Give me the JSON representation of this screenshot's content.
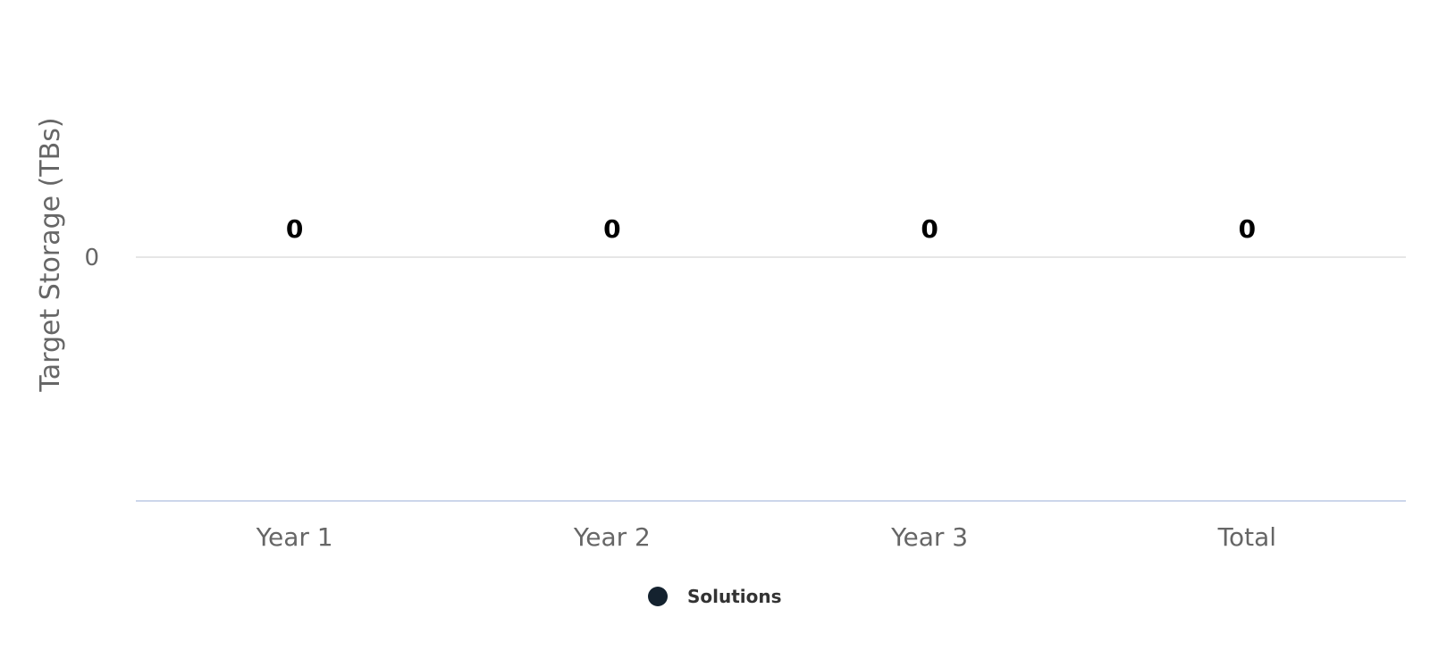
{
  "chart_data": {
    "type": "bar",
    "title": "",
    "xlabel": "",
    "ylabel": "Target Storage (TBs)",
    "categories": [
      "Year 1",
      "Year 2",
      "Year 3",
      "Total"
    ],
    "series": [
      {
        "name": "Solutions",
        "values": [
          0,
          0,
          0,
          0
        ],
        "color": "#14222f"
      }
    ],
    "data_labels": [
      "0",
      "0",
      "0",
      "0"
    ],
    "y_ticks": [
      "0"
    ],
    "grid": true,
    "legend_position": "bottom-center"
  },
  "colors": {
    "axis_text": "#666666",
    "grid": "#e6e6e6",
    "x_axis_line": "#ccd6eb",
    "data_label": "#000000",
    "legend_text": "#333333"
  }
}
